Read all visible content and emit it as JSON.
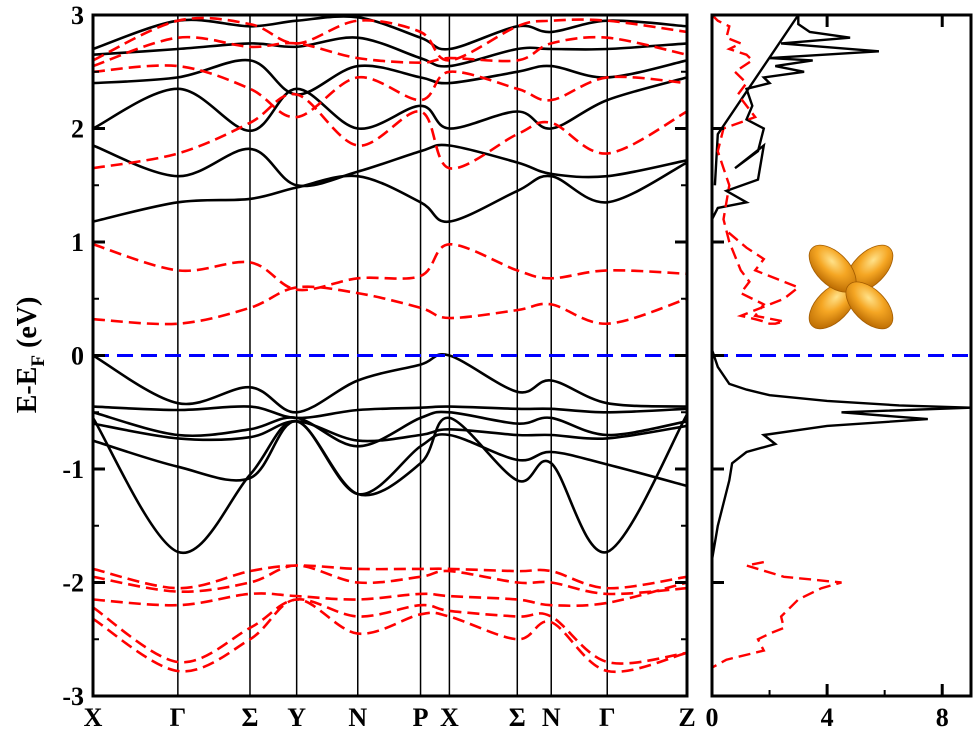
{
  "chart_data": [
    {
      "type": "line",
      "ylabel": "E-E_F (eV)",
      "ylabel_parts": {
        "main": "E-E",
        "sub": "F",
        "unit": "(eV)"
      },
      "ylim": [
        -3,
        3
      ],
      "yticks": [
        -3,
        -2,
        -1,
        0,
        1,
        2,
        3
      ],
      "ytick_labels": [
        "-3",
        "-2",
        "-1",
        "0",
        "1",
        "2",
        "3"
      ],
      "kpoints": [
        {
          "label": "X",
          "pos": 0.0
        },
        {
          "label": "Γ",
          "pos": 1.0
        },
        {
          "label": "Σ",
          "pos": 1.85
        },
        {
          "label": "Y",
          "pos": 2.4
        },
        {
          "label": "N",
          "pos": 3.12
        },
        {
          "label": "P",
          "pos": 3.86
        },
        {
          "label": "X",
          "pos": 4.2
        },
        {
          "label": "Σ",
          "pos": 5.0
        },
        {
          "label": "N",
          "pos": 5.4
        },
        {
          "label": "Γ",
          "pos": 6.06
        },
        {
          "label": "Z",
          "pos": 7.0
        }
      ],
      "fermi_level": 0,
      "colors": {
        "spin_up": "#000000",
        "spin_down": "#ff0000",
        "fermi": "#0000ff"
      },
      "series": [
        {
          "style": "solid",
          "x": [
            0,
            1,
            1.85,
            2.4,
            3.12,
            3.86,
            4.2,
            5.0,
            5.4,
            6.06,
            7.0
          ],
          "y": [
            0,
            -0.42,
            -0.28,
            -0.5,
            -0.22,
            -0.08,
            0,
            -0.32,
            -0.22,
            -0.42,
            -0.45
          ]
        },
        {
          "style": "solid",
          "x": [
            0,
            1,
            1.85,
            2.4,
            3.12,
            3.86,
            4.2,
            5.0,
            5.4,
            6.06,
            7.0
          ],
          "y": [
            -0.45,
            -0.48,
            -0.45,
            -0.55,
            -0.48,
            -0.46,
            -0.45,
            -0.47,
            -0.47,
            -0.5,
            -0.47
          ]
        },
        {
          "style": "solid",
          "x": [
            0,
            1,
            1.85,
            2.4,
            3.12,
            3.86,
            4.2,
            5.0,
            5.4,
            6.06,
            7.0
          ],
          "y": [
            -0.5,
            -0.7,
            -0.65,
            -0.55,
            -0.8,
            -0.55,
            -0.5,
            -0.6,
            -0.55,
            -0.7,
            -0.58
          ]
        },
        {
          "style": "solid",
          "x": [
            0,
            1,
            1.85,
            2.4,
            3.12,
            3.86,
            4.2,
            5.0,
            5.4,
            6.06,
            7.0
          ],
          "y": [
            -0.6,
            -0.73,
            -0.72,
            -0.58,
            -0.75,
            -0.7,
            -0.65,
            -0.7,
            -0.7,
            -0.73,
            -0.62
          ]
        },
        {
          "style": "solid",
          "x": [
            0,
            1,
            1.85,
            2.4,
            3.12,
            3.86,
            4.2,
            5.0,
            5.4,
            6.06,
            7.0
          ],
          "y": [
            -0.75,
            -0.98,
            -1.08,
            -0.58,
            -1.22,
            -0.8,
            -0.7,
            -0.92,
            -0.85,
            -0.96,
            -1.15
          ]
        },
        {
          "style": "solid",
          "x": [
            0,
            1,
            1.85,
            2.4,
            3.12,
            3.86,
            4.2,
            5.0,
            5.4,
            6.06,
            7.0
          ],
          "y": [
            -0.55,
            -1.73,
            -1.05,
            -0.58,
            -1.22,
            -0.95,
            -0.55,
            -1.1,
            -0.95,
            -1.73,
            -0.52
          ]
        },
        {
          "style": "solid",
          "x": [
            0,
            1,
            1.85,
            2.4,
            3.12,
            3.86,
            4.2,
            5.0,
            5.4,
            6.06,
            7.0
          ],
          "y": [
            1.18,
            1.35,
            1.38,
            1.48,
            1.58,
            1.35,
            1.18,
            1.45,
            1.58,
            1.35,
            1.7
          ]
        },
        {
          "style": "solid",
          "x": [
            0,
            1,
            1.85,
            2.4,
            3.12,
            3.86,
            4.2,
            5.0,
            5.4,
            6.06,
            7.0
          ],
          "y": [
            1.85,
            1.58,
            1.82,
            1.5,
            1.62,
            1.8,
            1.85,
            1.7,
            1.6,
            1.58,
            1.72
          ]
        },
        {
          "style": "solid",
          "x": [
            0,
            1,
            1.85,
            2.4,
            3.12,
            3.86,
            4.2,
            5.0,
            5.4,
            6.06,
            7.0
          ],
          "y": [
            2.0,
            2.35,
            1.98,
            2.35,
            2.0,
            2.2,
            2.0,
            2.15,
            2.0,
            2.25,
            2.45
          ]
        },
        {
          "style": "solid",
          "x": [
            0,
            1,
            1.85,
            2.4,
            3.12,
            3.86,
            4.2,
            5.0,
            5.4,
            6.06,
            7.0
          ],
          "y": [
            2.4,
            2.45,
            2.6,
            2.3,
            2.55,
            2.45,
            2.4,
            2.5,
            2.55,
            2.45,
            2.6
          ]
        },
        {
          "style": "solid",
          "x": [
            0,
            1,
            1.85,
            2.4,
            3.12,
            3.86,
            4.2,
            5.0,
            5.4,
            6.06,
            7.0
          ],
          "y": [
            2.65,
            2.7,
            2.75,
            2.72,
            2.8,
            2.62,
            2.55,
            2.7,
            2.7,
            2.7,
            2.75
          ]
        },
        {
          "style": "solid",
          "x": [
            0,
            1,
            1.85,
            2.4,
            3.12,
            3.86,
            4.2,
            5.0,
            5.4,
            6.06,
            7.0
          ],
          "y": [
            2.7,
            2.95,
            2.9,
            2.95,
            2.98,
            2.8,
            2.7,
            2.9,
            2.85,
            2.95,
            2.9
          ]
        },
        {
          "style": "dashed",
          "x": [
            0,
            1,
            1.85,
            2.4,
            3.12,
            3.86,
            4.2,
            5.0,
            5.4,
            6.06,
            7.0
          ],
          "y": [
            0.32,
            0.28,
            0.42,
            0.6,
            0.55,
            0.42,
            0.33,
            0.4,
            0.45,
            0.28,
            0.5
          ]
        },
        {
          "style": "dashed",
          "x": [
            0,
            1,
            1.85,
            2.4,
            3.12,
            3.86,
            4.2,
            5.0,
            5.4,
            6.06,
            7.0
          ],
          "y": [
            0.98,
            0.75,
            0.82,
            0.58,
            0.68,
            0.7,
            0.98,
            0.75,
            0.68,
            0.75,
            0.72
          ]
        },
        {
          "style": "dashed",
          "x": [
            0,
            1,
            1.85,
            2.4,
            3.12,
            3.86,
            4.2,
            5.0,
            5.4,
            6.06,
            7.0
          ],
          "y": [
            1.65,
            1.78,
            2.05,
            2.3,
            1.85,
            2.15,
            1.65,
            1.95,
            2.05,
            1.78,
            2.15
          ]
        },
        {
          "style": "dashed",
          "x": [
            0,
            1,
            1.85,
            2.4,
            3.12,
            3.86,
            4.2,
            5.0,
            5.4,
            6.06,
            7.0
          ],
          "y": [
            2.5,
            2.55,
            2.35,
            2.1,
            2.45,
            2.25,
            2.5,
            2.35,
            2.25,
            2.45,
            2.4
          ]
        },
        {
          "style": "dashed",
          "x": [
            0,
            1,
            1.85,
            2.4,
            3.12,
            3.86,
            4.2,
            5.0,
            5.4,
            6.06,
            7.0
          ],
          "y": [
            2.55,
            2.8,
            2.72,
            2.75,
            2.62,
            2.58,
            2.62,
            2.6,
            2.75,
            2.8,
            2.65
          ]
        },
        {
          "style": "dashed",
          "x": [
            0,
            1,
            1.85,
            2.4,
            3.12,
            3.86,
            4.2,
            5.0,
            5.4,
            6.06,
            7.0
          ],
          "y": [
            2.6,
            2.95,
            2.92,
            2.75,
            2.95,
            2.85,
            2.6,
            2.9,
            2.95,
            2.95,
            2.85
          ]
        },
        {
          "style": "dashed",
          "x": [
            0,
            1,
            1.85,
            2.4,
            3.12,
            3.86,
            4.2,
            5.0,
            5.4,
            6.06,
            7.0
          ],
          "y": [
            -1.88,
            -2.05,
            -1.9,
            -1.85,
            -1.88,
            -1.88,
            -1.88,
            -1.9,
            -1.9,
            -2.05,
            -1.95
          ]
        },
        {
          "style": "dashed",
          "x": [
            0,
            1,
            1.85,
            2.4,
            3.12,
            3.86,
            4.2,
            5.0,
            5.4,
            6.06,
            7.0
          ],
          "y": [
            -1.95,
            -2.08,
            -2.0,
            -1.85,
            -2.0,
            -1.95,
            -1.9,
            -2.0,
            -2.0,
            -2.1,
            -2.05
          ]
        },
        {
          "style": "dashed",
          "x": [
            0,
            1,
            1.85,
            2.4,
            3.12,
            3.86,
            4.2,
            5.0,
            5.4,
            6.06,
            7.0
          ],
          "y": [
            -2.15,
            -2.2,
            -2.1,
            -2.12,
            -2.15,
            -2.1,
            -2.12,
            -2.15,
            -2.2,
            -2.18,
            -2.0
          ]
        },
        {
          "style": "dashed",
          "x": [
            0,
            1,
            1.85,
            2.4,
            3.12,
            3.86,
            4.2,
            5.0,
            5.4,
            6.06,
            7.0
          ],
          "y": [
            -2.22,
            -2.7,
            -2.4,
            -2.15,
            -2.3,
            -2.2,
            -2.25,
            -2.3,
            -2.3,
            -2.7,
            -2.62
          ]
        },
        {
          "style": "dashed",
          "x": [
            0,
            1,
            1.85,
            2.4,
            3.12,
            3.86,
            4.2,
            5.0,
            5.4,
            6.06,
            7.0
          ],
          "y": [
            -2.32,
            -2.78,
            -2.5,
            -2.15,
            -2.45,
            -2.28,
            -2.3,
            -2.5,
            -2.35,
            -2.78,
            -2.62
          ]
        }
      ]
    },
    {
      "type": "line",
      "xlim": [
        0,
        9
      ],
      "xticks": [
        0,
        4,
        8
      ],
      "xtick_labels": [
        "0",
        "4",
        "8"
      ],
      "ylim": [
        -3,
        3
      ],
      "series": [
        {
          "style": "solid",
          "x": [
            0,
            0,
            0.2,
            1.2,
            0.5,
            1.6,
            1.8,
            0.8,
            1.6,
            1.8,
            1.2,
            1.4,
            1.2,
            2.0,
            1.8,
            3.2,
            2.2,
            3.5,
            2.0,
            5.8,
            2.4,
            4.8,
            3.4,
            3.0,
            3.0,
            0.2,
            0.1,
            0.0,
            0.2,
            0.6,
            1.2,
            2.0,
            4.0,
            6.5,
            9.0,
            4.5,
            7.5,
            4.0,
            1.8,
            2.2,
            1.2,
            0.7,
            0.6,
            0.2,
            0.0,
            0.0
          ],
          "y": [
            1.1,
            1.2,
            1.3,
            1.35,
            1.45,
            1.55,
            1.85,
            1.65,
            1.8,
            2.0,
            2.08,
            2.2,
            2.35,
            2.4,
            2.45,
            2.5,
            2.55,
            2.6,
            2.62,
            2.68,
            2.75,
            2.8,
            2.85,
            2.92,
            3.0,
            1.95,
            1.5,
            0.05,
            -0.1,
            -0.25,
            -0.3,
            -0.35,
            -0.4,
            -0.44,
            -0.46,
            -0.5,
            -0.56,
            -0.62,
            -0.7,
            -0.78,
            -0.85,
            -0.95,
            -1.1,
            -1.5,
            -1.8,
            -2.0
          ]
        },
        {
          "style": "dashed",
          "x": [
            0,
            0.2,
            0.6,
            0.5,
            1.0,
            0.6,
            1.2,
            1.4,
            0.8,
            1.2,
            0.9,
            1.5,
            0.4,
            0.2,
            0.4,
            0.6,
            0.4,
            0.6,
            1.0,
            1.3,
            1.0,
            1.8,
            1.5,
            2.5,
            2.2,
            2.0,
            1.8,
            1.5,
            1.0,
            2.5,
            3.0,
            1.5,
            1.8,
            1.2,
            0.5,
            1.8,
            1.2,
            2.5,
            4.5,
            3.8,
            3.0,
            2.8,
            2.4,
            2.5,
            2.0,
            1.6,
            1.8,
            0.5,
            0.0
          ],
          "y": [
            3.0,
            2.95,
            2.9,
            2.8,
            2.75,
            2.7,
            2.65,
            2.6,
            2.5,
            2.4,
            2.3,
            2.1,
            2.0,
            1.8,
            1.65,
            1.5,
            1.2,
            1.0,
            0.75,
            0.65,
            0.55,
            0.45,
            0.35,
            0.3,
            0.28,
            0.28,
            0.3,
            0.32,
            0.35,
            0.5,
            0.6,
            0.75,
            0.85,
            0.95,
            1.1,
            -1.82,
            -1.85,
            -1.95,
            -2.0,
            -2.05,
            -2.15,
            -2.2,
            -2.3,
            -2.4,
            -2.45,
            -2.5,
            -2.6,
            -2.68,
            -2.75
          ]
        }
      ],
      "inset_icon": "d-orbital-icon"
    }
  ]
}
